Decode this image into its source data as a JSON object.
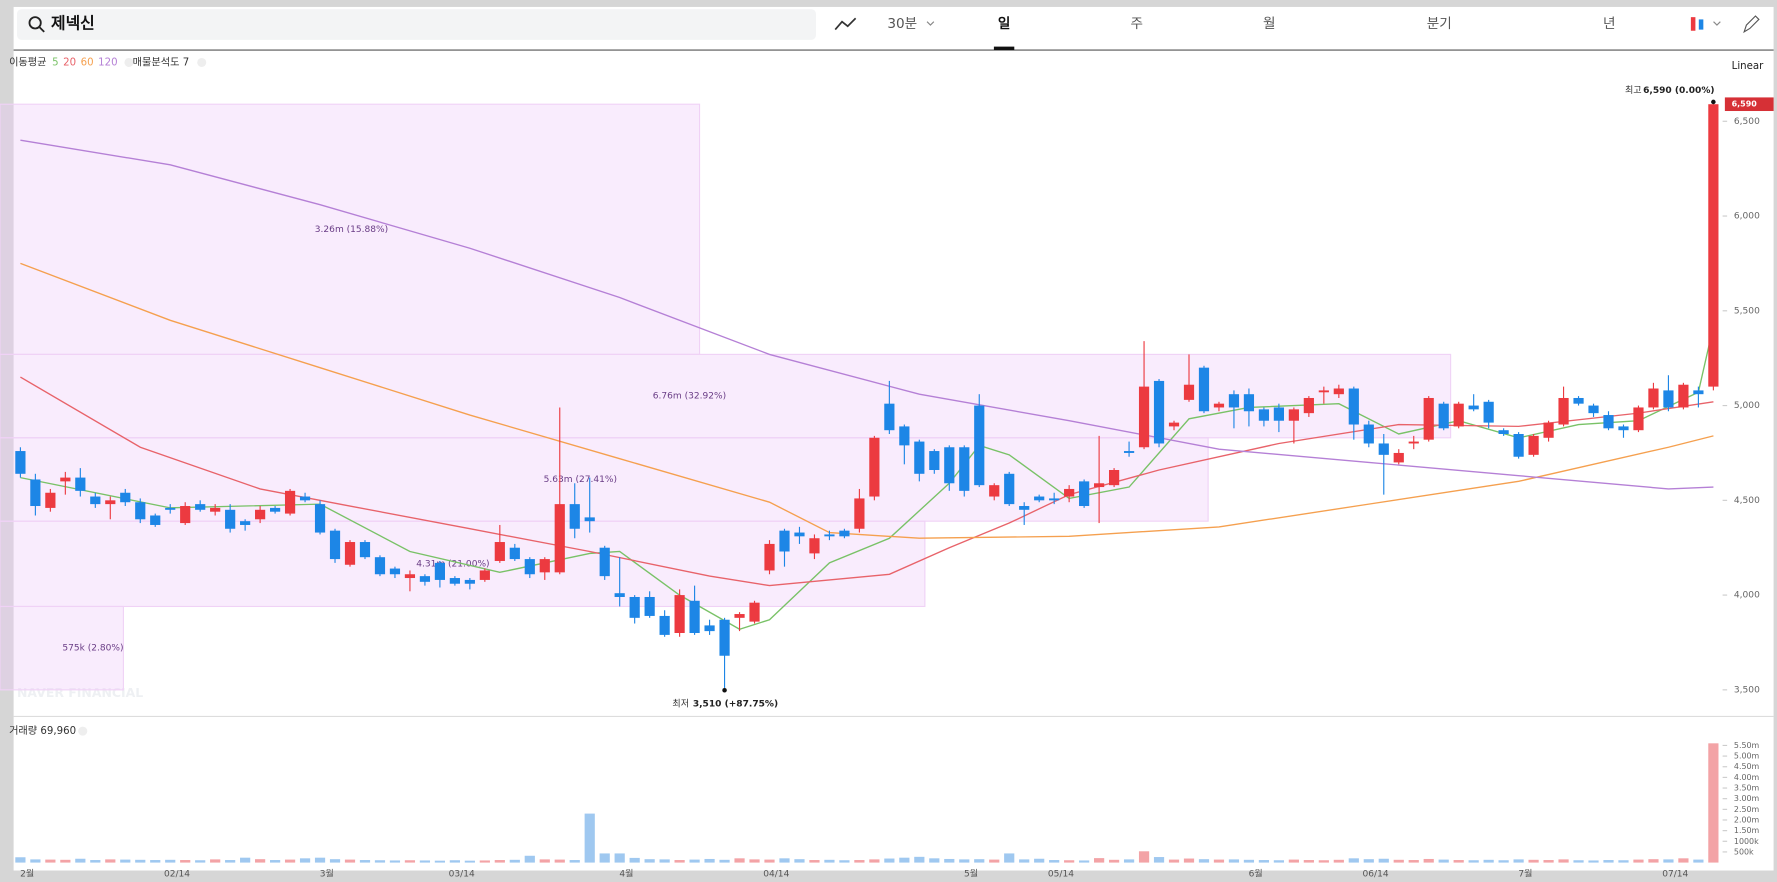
{
  "search": {
    "query": "제넥신"
  },
  "toolbar": {
    "intraday": "30분",
    "periods": [
      "일",
      "주",
      "월",
      "분기",
      "년"
    ],
    "selected": 0
  },
  "legend": {
    "ma_label": "이동평균",
    "profile_label": "매물분석도 7",
    "scale": "Linear",
    "volume_label": "거래량 69,960"
  },
  "watermark": "NAVER FINANCIAL",
  "chart_data": {
    "type": "candlestick",
    "ylim": [
      3360,
      6870
    ],
    "yticks": [
      {
        "value": 3500,
        "label": "3,500"
      },
      {
        "value": 4000,
        "label": "4,000"
      },
      {
        "value": 4500,
        "label": "4,500"
      },
      {
        "value": 5000,
        "label": "5,000"
      },
      {
        "value": 5500,
        "label": "5,500"
      },
      {
        "value": 6000,
        "label": "6,000"
      },
      {
        "value": 6500,
        "label": "6,500"
      }
    ],
    "up_color": "#ec3a40",
    "down_color": "#1d86e6",
    "x_labels": [
      {
        "label": "2월",
        "index": 0
      },
      {
        "label": "02/14",
        "index": 10
      },
      {
        "label": "3월",
        "index": 20
      },
      {
        "label": "03/14",
        "index": 29
      },
      {
        "label": "4월",
        "index": 40
      },
      {
        "label": "04/14",
        "index": 50
      },
      {
        "label": "5월",
        "index": 63
      },
      {
        "label": "05/14",
        "index": 69
      },
      {
        "label": "6월",
        "index": 82
      },
      {
        "label": "06/14",
        "index": 90
      },
      {
        "label": "7월",
        "index": 100
      },
      {
        "label": "07/14",
        "index": 110
      }
    ],
    "ohlc": [
      [
        4760,
        4780,
        4620,
        4640
      ],
      [
        4610,
        4640,
        4420,
        4470
      ],
      [
        4460,
        4560,
        4440,
        4540
      ],
      [
        4600,
        4650,
        4530,
        4620
      ],
      [
        4620,
        4670,
        4520,
        4550
      ],
      [
        4520,
        4540,
        4460,
        4480
      ],
      [
        4480,
        4520,
        4400,
        4500
      ],
      [
        4540,
        4560,
        4470,
        4490
      ],
      [
        4490,
        4510,
        4380,
        4400
      ],
      [
        4420,
        4430,
        4360,
        4370
      ],
      [
        4460,
        4480,
        4430,
        4450
      ],
      [
        4380,
        4490,
        4370,
        4470
      ],
      [
        4480,
        4500,
        4440,
        4450
      ],
      [
        4440,
        4480,
        4420,
        4460
      ],
      [
        4450,
        4480,
        4330,
        4350
      ],
      [
        4390,
        4400,
        4340,
        4370
      ],
      [
        4400,
        4470,
        4380,
        4450
      ],
      [
        4460,
        4470,
        4430,
        4440
      ],
      [
        4430,
        4560,
        4420,
        4550
      ],
      [
        4520,
        4540,
        4490,
        4500
      ],
      [
        4480,
        4500,
        4320,
        4330
      ],
      [
        4340,
        4350,
        4170,
        4190
      ],
      [
        4160,
        4290,
        4150,
        4280
      ],
      [
        4280,
        4290,
        4190,
        4200
      ],
      [
        4200,
        4210,
        4100,
        4110
      ],
      [
        4140,
        4150,
        4090,
        4110
      ],
      [
        4090,
        4130,
        4020,
        4110
      ],
      [
        4100,
        4110,
        4050,
        4070
      ],
      [
        4170,
        4180,
        4040,
        4080
      ],
      [
        4090,
        4100,
        4050,
        4060
      ],
      [
        4080,
        4090,
        4030,
        4060
      ],
      [
        4080,
        4140,
        4070,
        4130
      ],
      [
        4180,
        4370,
        4170,
        4280
      ],
      [
        4250,
        4270,
        4180,
        4190
      ],
      [
        4190,
        4200,
        4090,
        4110
      ],
      [
        4120,
        4200,
        4080,
        4190
      ],
      [
        4120,
        4990,
        4110,
        4480
      ],
      [
        4480,
        4590,
        4300,
        4350
      ],
      [
        4410,
        4620,
        4330,
        4390
      ],
      [
        4250,
        4260,
        4080,
        4100
      ],
      [
        4010,
        4200,
        3940,
        3990
      ],
      [
        3990,
        4000,
        3850,
        3880
      ],
      [
        3990,
        4020,
        3880,
        3890
      ],
      [
        3890,
        3920,
        3780,
        3790
      ],
      [
        3800,
        4030,
        3780,
        4000
      ],
      [
        3970,
        4050,
        3790,
        3800
      ],
      [
        3840,
        3870,
        3790,
        3810
      ],
      [
        3870,
        3880,
        3510,
        3680
      ],
      [
        3880,
        3910,
        3810,
        3900
      ],
      [
        3860,
        3970,
        3850,
        3960
      ],
      [
        4130,
        4290,
        4110,
        4270
      ],
      [
        4340,
        4350,
        4150,
        4230
      ],
      [
        4330,
        4360,
        4270,
        4310
      ],
      [
        4220,
        4320,
        4190,
        4300
      ],
      [
        4320,
        4340,
        4290,
        4310
      ],
      [
        4340,
        4350,
        4300,
        4310
      ],
      [
        4350,
        4560,
        4330,
        4510
      ],
      [
        4520,
        4840,
        4500,
        4830
      ],
      [
        5010,
        5130,
        4850,
        4870
      ],
      [
        4890,
        4900,
        4690,
        4790
      ],
      [
        4810,
        4820,
        4600,
        4640
      ],
      [
        4760,
        4770,
        4640,
        4660
      ],
      [
        4780,
        4790,
        4550,
        4590
      ],
      [
        4780,
        4790,
        4520,
        4550
      ],
      [
        5000,
        5060,
        4570,
        4580
      ],
      [
        4520,
        4590,
        4500,
        4580
      ],
      [
        4640,
        4650,
        4470,
        4480
      ],
      [
        4470,
        4490,
        4370,
        4450
      ],
      [
        4520,
        4530,
        4490,
        4500
      ],
      [
        4510,
        4540,
        4480,
        4500
      ],
      [
        4520,
        4580,
        4490,
        4560
      ],
      [
        4600,
        4610,
        4460,
        4470
      ],
      [
        4570,
        4840,
        4380,
        4590
      ],
      [
        4580,
        4670,
        4570,
        4660
      ],
      [
        4760,
        4810,
        4730,
        4750
      ],
      [
        4780,
        5340,
        4770,
        5100
      ],
      [
        5130,
        5140,
        4780,
        4800
      ],
      [
        4890,
        4920,
        4870,
        4910
      ],
      [
        5030,
        5270,
        5020,
        5110
      ],
      [
        5200,
        5210,
        4960,
        4970
      ],
      [
        4990,
        5020,
        4970,
        5010
      ],
      [
        5060,
        5080,
        4880,
        4990
      ],
      [
        5060,
        5090,
        4890,
        4970
      ],
      [
        4980,
        4990,
        4890,
        4920
      ],
      [
        4990,
        5010,
        4860,
        4920
      ],
      [
        4920,
        4990,
        4800,
        4980
      ],
      [
        4960,
        5050,
        4940,
        5040
      ],
      [
        5070,
        5100,
        5010,
        5080
      ],
      [
        5060,
        5110,
        5040,
        5090
      ],
      [
        5090,
        5100,
        4820,
        4900
      ],
      [
        4900,
        4920,
        4780,
        4800
      ],
      [
        4800,
        4850,
        4530,
        4740
      ],
      [
        4700,
        4770,
        4690,
        4750
      ],
      [
        4800,
        4840,
        4770,
        4810
      ],
      [
        4820,
        5050,
        4810,
        5040
      ],
      [
        5010,
        5020,
        4870,
        4880
      ],
      [
        4890,
        5020,
        4880,
        5010
      ],
      [
        5000,
        5060,
        4970,
        4980
      ],
      [
        5020,
        5030,
        4880,
        4910
      ],
      [
        4870,
        4880,
        4840,
        4850
      ],
      [
        4850,
        4860,
        4720,
        4730
      ],
      [
        4740,
        4850,
        4730,
        4840
      ],
      [
        4830,
        4920,
        4810,
        4910
      ],
      [
        4900,
        5100,
        4890,
        5040
      ],
      [
        5040,
        5050,
        5000,
        5010
      ],
      [
        5000,
        5010,
        4940,
        4960
      ],
      [
        4950,
        4970,
        4870,
        4880
      ],
      [
        4890,
        4900,
        4830,
        4870
      ],
      [
        4870,
        5000,
        4860,
        4990
      ],
      [
        4990,
        5120,
        4980,
        5090
      ],
      [
        5080,
        5160,
        4970,
        4990
      ],
      [
        4990,
        5120,
        4980,
        5110
      ],
      [
        5080,
        5100,
        4990,
        5060
      ],
      [
        5100,
        6590,
        5080,
        6590
      ]
    ],
    "volume": [
      250000,
      150000,
      140000,
      130000,
      180000,
      120000,
      150000,
      140000,
      130000,
      120000,
      130000,
      120000,
      110000,
      150000,
      120000,
      230000,
      160000,
      120000,
      140000,
      200000,
      230000,
      160000,
      140000,
      120000,
      110000,
      100000,
      110000,
      100000,
      90000,
      110000,
      90000,
      100000,
      120000,
      130000,
      320000,
      150000,
      140000,
      120000,
      2300000,
      430000,
      430000,
      220000,
      160000,
      150000,
      120000,
      140000,
      170000,
      130000,
      200000,
      150000,
      140000,
      200000,
      160000,
      120000,
      130000,
      110000,
      120000,
      150000,
      190000,
      230000,
      270000,
      200000,
      170000,
      150000,
      160000,
      140000,
      430000,
      150000,
      180000,
      120000,
      110000,
      100000,
      210000,
      130000,
      150000,
      530000,
      260000,
      140000,
      190000,
      160000,
      140000,
      150000,
      130000,
      120000,
      110000,
      140000,
      120000,
      110000,
      130000,
      200000,
      160000,
      180000,
      130000,
      120000,
      170000,
      140000,
      120000,
      110000,
      130000,
      110000,
      150000,
      130000,
      120000,
      150000,
      110000,
      100000,
      120000,
      110000,
      140000,
      160000,
      150000,
      200000,
      140000,
      5600000
    ],
    "volume_ylim": [
      0,
      5800000
    ],
    "volume_yticks": [
      {
        "value": 500000,
        "label": "500k"
      },
      {
        "value": 1000000,
        "label": "1000k"
      },
      {
        "value": 1500000,
        "label": "1.50m"
      },
      {
        "value": 2000000,
        "label": "2.00m"
      },
      {
        "value": 2500000,
        "label": "2.50m"
      },
      {
        "value": 3000000,
        "label": "3.00m"
      },
      {
        "value": 3500000,
        "label": "3.50m"
      },
      {
        "value": 4000000,
        "label": "4.00m"
      },
      {
        "value": 4500000,
        "label": "4.50m"
      },
      {
        "value": 5000000,
        "label": "5.00m"
      },
      {
        "value": 5500000,
        "label": "5.50m"
      }
    ],
    "moving_averages": [
      {
        "name": "5",
        "color": "#79c267",
        "points": [
          [
            0,
            4620
          ],
          [
            10,
            4460
          ],
          [
            20,
            4480
          ],
          [
            26,
            4230
          ],
          [
            32,
            4120
          ],
          [
            38,
            4220
          ],
          [
            40,
            4230
          ],
          [
            44,
            4000
          ],
          [
            48,
            3820
          ],
          [
            50,
            3870
          ],
          [
            54,
            4170
          ],
          [
            58,
            4300
          ],
          [
            62,
            4590
          ],
          [
            64,
            4790
          ],
          [
            66,
            4740
          ],
          [
            70,
            4510
          ],
          [
            74,
            4570
          ],
          [
            78,
            4930
          ],
          [
            82,
            4990
          ],
          [
            88,
            5010
          ],
          [
            92,
            4850
          ],
          [
            96,
            4920
          ],
          [
            100,
            4830
          ],
          [
            104,
            4900
          ],
          [
            108,
            4920
          ],
          [
            112,
            5070
          ],
          [
            113,
            5420
          ]
        ]
      },
      {
        "name": "20",
        "color": "#e8636a",
        "points": [
          [
            0,
            5150
          ],
          [
            8,
            4780
          ],
          [
            16,
            4560
          ],
          [
            22,
            4470
          ],
          [
            30,
            4350
          ],
          [
            38,
            4230
          ],
          [
            46,
            4100
          ],
          [
            50,
            4050
          ],
          [
            58,
            4110
          ],
          [
            62,
            4250
          ],
          [
            66,
            4380
          ],
          [
            70,
            4530
          ],
          [
            76,
            4660
          ],
          [
            84,
            4800
          ],
          [
            92,
            4900
          ],
          [
            100,
            4890
          ],
          [
            108,
            4960
          ],
          [
            113,
            5020
          ]
        ]
      },
      {
        "name": "60",
        "color": "#f5a04f",
        "points": [
          [
            0,
            5750
          ],
          [
            10,
            5450
          ],
          [
            20,
            5200
          ],
          [
            30,
            4950
          ],
          [
            40,
            4720
          ],
          [
            50,
            4490
          ],
          [
            54,
            4330
          ],
          [
            60,
            4300
          ],
          [
            70,
            4310
          ],
          [
            80,
            4360
          ],
          [
            90,
            4480
          ],
          [
            100,
            4600
          ],
          [
            110,
            4780
          ],
          [
            113,
            4840
          ]
        ]
      },
      {
        "name": "120",
        "color": "#b580d6",
        "points": [
          [
            0,
            6400
          ],
          [
            10,
            6270
          ],
          [
            20,
            6060
          ],
          [
            30,
            5830
          ],
          [
            40,
            5570
          ],
          [
            50,
            5270
          ],
          [
            60,
            5060
          ],
          [
            70,
            4920
          ],
          [
            80,
            4770
          ],
          [
            90,
            4700
          ],
          [
            100,
            4630
          ],
          [
            110,
            4560
          ],
          [
            113,
            4570
          ]
        ]
      }
    ],
    "volume_profile": [
      {
        "low": 3500,
        "high": 3940,
        "volume": 575000,
        "label": "575k (2.80%)"
      },
      {
        "low": 3940,
        "high": 4390,
        "volume": 4310000,
        "label": "4.31m (21.00%)"
      },
      {
        "low": 4390,
        "high": 4830,
        "volume": 5630000,
        "label": "5.63m (27.41%)"
      },
      {
        "low": 4830,
        "high": 5270,
        "volume": 6760000,
        "label": "6.76m (32.92%)"
      },
      {
        "low": 5270,
        "high": 6590,
        "volume": 3260000,
        "label": "3.26m (15.88%)"
      }
    ],
    "high_annotation": {
      "prefix": "최고",
      "text": "6,590 (0.00%)"
    },
    "low_annotation": {
      "prefix": "최저",
      "text": "3,510 (+87.75%)"
    },
    "price_tag": "6,590"
  }
}
